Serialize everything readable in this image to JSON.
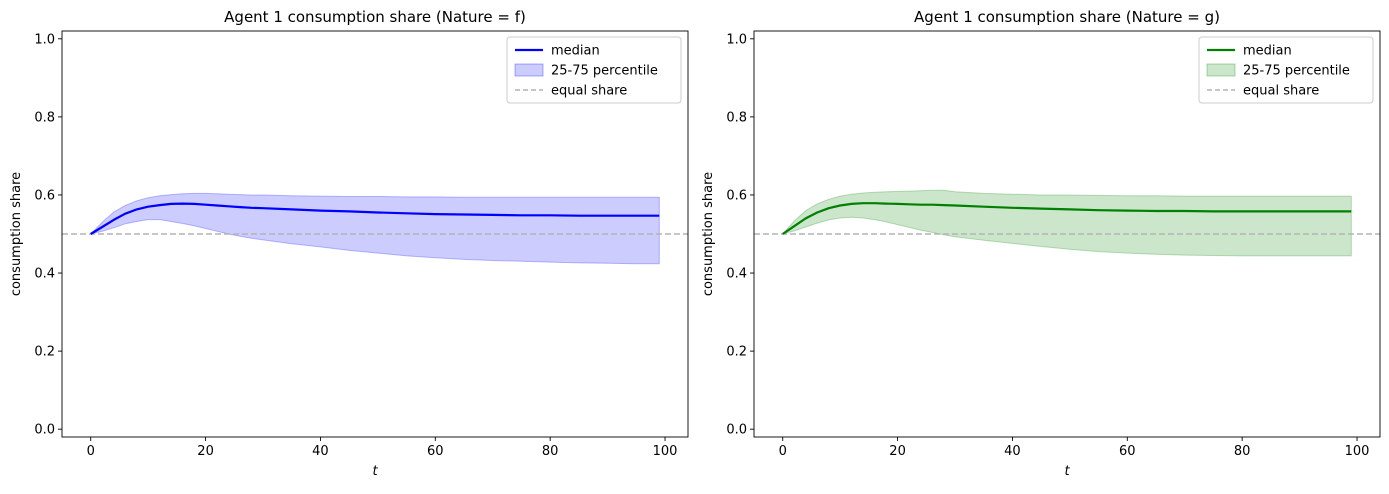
{
  "chart_data": [
    {
      "type": "line",
      "title": "Agent 1 consumption share (Nature = f)",
      "xlabel": "t",
      "ylabel": "consumption share",
      "xlim": [
        -5,
        104
      ],
      "ylim": [
        -0.02,
        1.02
      ],
      "xticks": [
        0,
        20,
        40,
        60,
        80,
        100
      ],
      "yticks": [
        0.0,
        0.2,
        0.4,
        0.6,
        0.8,
        1.0
      ],
      "xtick_labels": [
        "0",
        "20",
        "40",
        "60",
        "80",
        "100"
      ],
      "ytick_labels": [
        "0.0",
        "0.2",
        "0.4",
        "0.6",
        "0.8",
        "1.0"
      ],
      "grid": false,
      "legend_position": "top-right",
      "colors": {
        "line": "#0000ff",
        "band": "#0000ff",
        "reference": "#b3b3b3"
      },
      "legend": [
        "median",
        "25-75 percentile",
        "equal share"
      ],
      "reference_line": {
        "name": "equal share",
        "y": 0.5
      },
      "x": [
        0,
        2,
        4,
        6,
        8,
        10,
        12,
        14,
        16,
        18,
        20,
        22,
        24,
        26,
        28,
        30,
        35,
        40,
        45,
        50,
        55,
        60,
        65,
        70,
        75,
        80,
        85,
        90,
        95,
        99
      ],
      "series": [
        {
          "name": "median",
          "role": "line",
          "values": [
            0.5,
            0.518,
            0.536,
            0.552,
            0.563,
            0.57,
            0.574,
            0.577,
            0.578,
            0.577,
            0.575,
            0.573,
            0.571,
            0.569,
            0.567,
            0.566,
            0.563,
            0.56,
            0.558,
            0.555,
            0.553,
            0.551,
            0.55,
            0.549,
            0.548,
            0.548,
            0.547,
            0.547,
            0.547,
            0.547
          ]
        },
        {
          "name": "25-75 percentile",
          "role": "band_upper",
          "values": [
            0.5,
            0.53,
            0.556,
            0.573,
            0.585,
            0.593,
            0.598,
            0.601,
            0.603,
            0.604,
            0.604,
            0.603,
            0.602,
            0.601,
            0.6,
            0.6,
            0.598,
            0.597,
            0.596,
            0.596,
            0.595,
            0.595,
            0.594,
            0.594,
            0.594,
            0.594,
            0.594,
            0.594,
            0.594,
            0.594
          ]
        },
        {
          "name": "25-75 percentile",
          "role": "band_lower",
          "values": [
            0.5,
            0.507,
            0.516,
            0.526,
            0.532,
            0.537,
            0.537,
            0.532,
            0.527,
            0.521,
            0.514,
            0.507,
            0.5,
            0.494,
            0.489,
            0.485,
            0.475,
            0.467,
            0.458,
            0.451,
            0.444,
            0.439,
            0.435,
            0.432,
            0.43,
            0.428,
            0.426,
            0.425,
            0.424,
            0.424
          ]
        }
      ]
    },
    {
      "type": "line",
      "title": "Agent 1 consumption share (Nature = g)",
      "xlabel": "t",
      "ylabel": "consumption share",
      "xlim": [
        -5,
        104
      ],
      "ylim": [
        -0.02,
        1.02
      ],
      "xticks": [
        0,
        20,
        40,
        60,
        80,
        100
      ],
      "yticks": [
        0.0,
        0.2,
        0.4,
        0.6,
        0.8,
        1.0
      ],
      "xtick_labels": [
        "0",
        "20",
        "40",
        "60",
        "80",
        "100"
      ],
      "ytick_labels": [
        "0.0",
        "0.2",
        "0.4",
        "0.6",
        "0.8",
        "1.0"
      ],
      "grid": false,
      "legend_position": "top-right",
      "colors": {
        "line": "#008000",
        "band": "#008000",
        "reference": "#b3b3b3"
      },
      "legend": [
        "median",
        "25-75 percentile",
        "equal share"
      ],
      "reference_line": {
        "name": "equal share",
        "y": 0.5
      },
      "x": [
        0,
        2,
        4,
        6,
        8,
        10,
        12,
        14,
        16,
        18,
        20,
        22,
        24,
        26,
        28,
        30,
        35,
        40,
        45,
        50,
        55,
        60,
        65,
        70,
        75,
        80,
        85,
        90,
        95,
        99
      ],
      "series": [
        {
          "name": "median",
          "role": "line",
          "values": [
            0.5,
            0.52,
            0.54,
            0.555,
            0.566,
            0.573,
            0.577,
            0.579,
            0.579,
            0.578,
            0.577,
            0.576,
            0.575,
            0.575,
            0.574,
            0.573,
            0.57,
            0.567,
            0.565,
            0.563,
            0.561,
            0.56,
            0.559,
            0.559,
            0.558,
            0.558,
            0.558,
            0.558,
            0.558,
            0.558
          ]
        },
        {
          "name": "25-75 percentile",
          "role": "band_upper",
          "values": [
            0.5,
            0.533,
            0.56,
            0.577,
            0.589,
            0.597,
            0.602,
            0.605,
            0.607,
            0.608,
            0.609,
            0.61,
            0.611,
            0.612,
            0.612,
            0.608,
            0.604,
            0.602,
            0.6,
            0.6,
            0.599,
            0.598,
            0.598,
            0.597,
            0.597,
            0.597,
            0.597,
            0.597,
            0.597,
            0.597
          ]
        },
        {
          "name": "25-75 percentile",
          "role": "band_lower",
          "values": [
            0.5,
            0.508,
            0.518,
            0.528,
            0.536,
            0.541,
            0.543,
            0.541,
            0.537,
            0.531,
            0.524,
            0.517,
            0.51,
            0.504,
            0.498,
            0.493,
            0.484,
            0.476,
            0.468,
            0.461,
            0.455,
            0.451,
            0.448,
            0.446,
            0.445,
            0.444,
            0.444,
            0.444,
            0.444,
            0.444
          ]
        }
      ]
    }
  ]
}
